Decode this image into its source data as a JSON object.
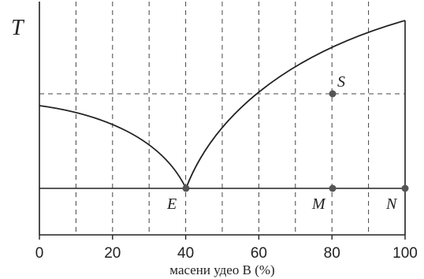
{
  "diagram": {
    "y_axis_label": "T",
    "x_axis_label": "масени удео B (%)",
    "x_ticks": [
      "0",
      "20",
      "40",
      "60",
      "80",
      "100"
    ],
    "x_domain": [
      0,
      100
    ],
    "grid_x": [
      10,
      20,
      30,
      40,
      50,
      60,
      70,
      80,
      90
    ],
    "points": {
      "S": {
        "label": "S",
        "x": 80
      },
      "E": {
        "label": "E",
        "x": 40
      },
      "M": {
        "label": "M",
        "x": 80
      },
      "N": {
        "label": "N",
        "x": 100
      }
    },
    "colors": {
      "line": "#222222",
      "grid": "#444444",
      "point": "#555555"
    }
  }
}
